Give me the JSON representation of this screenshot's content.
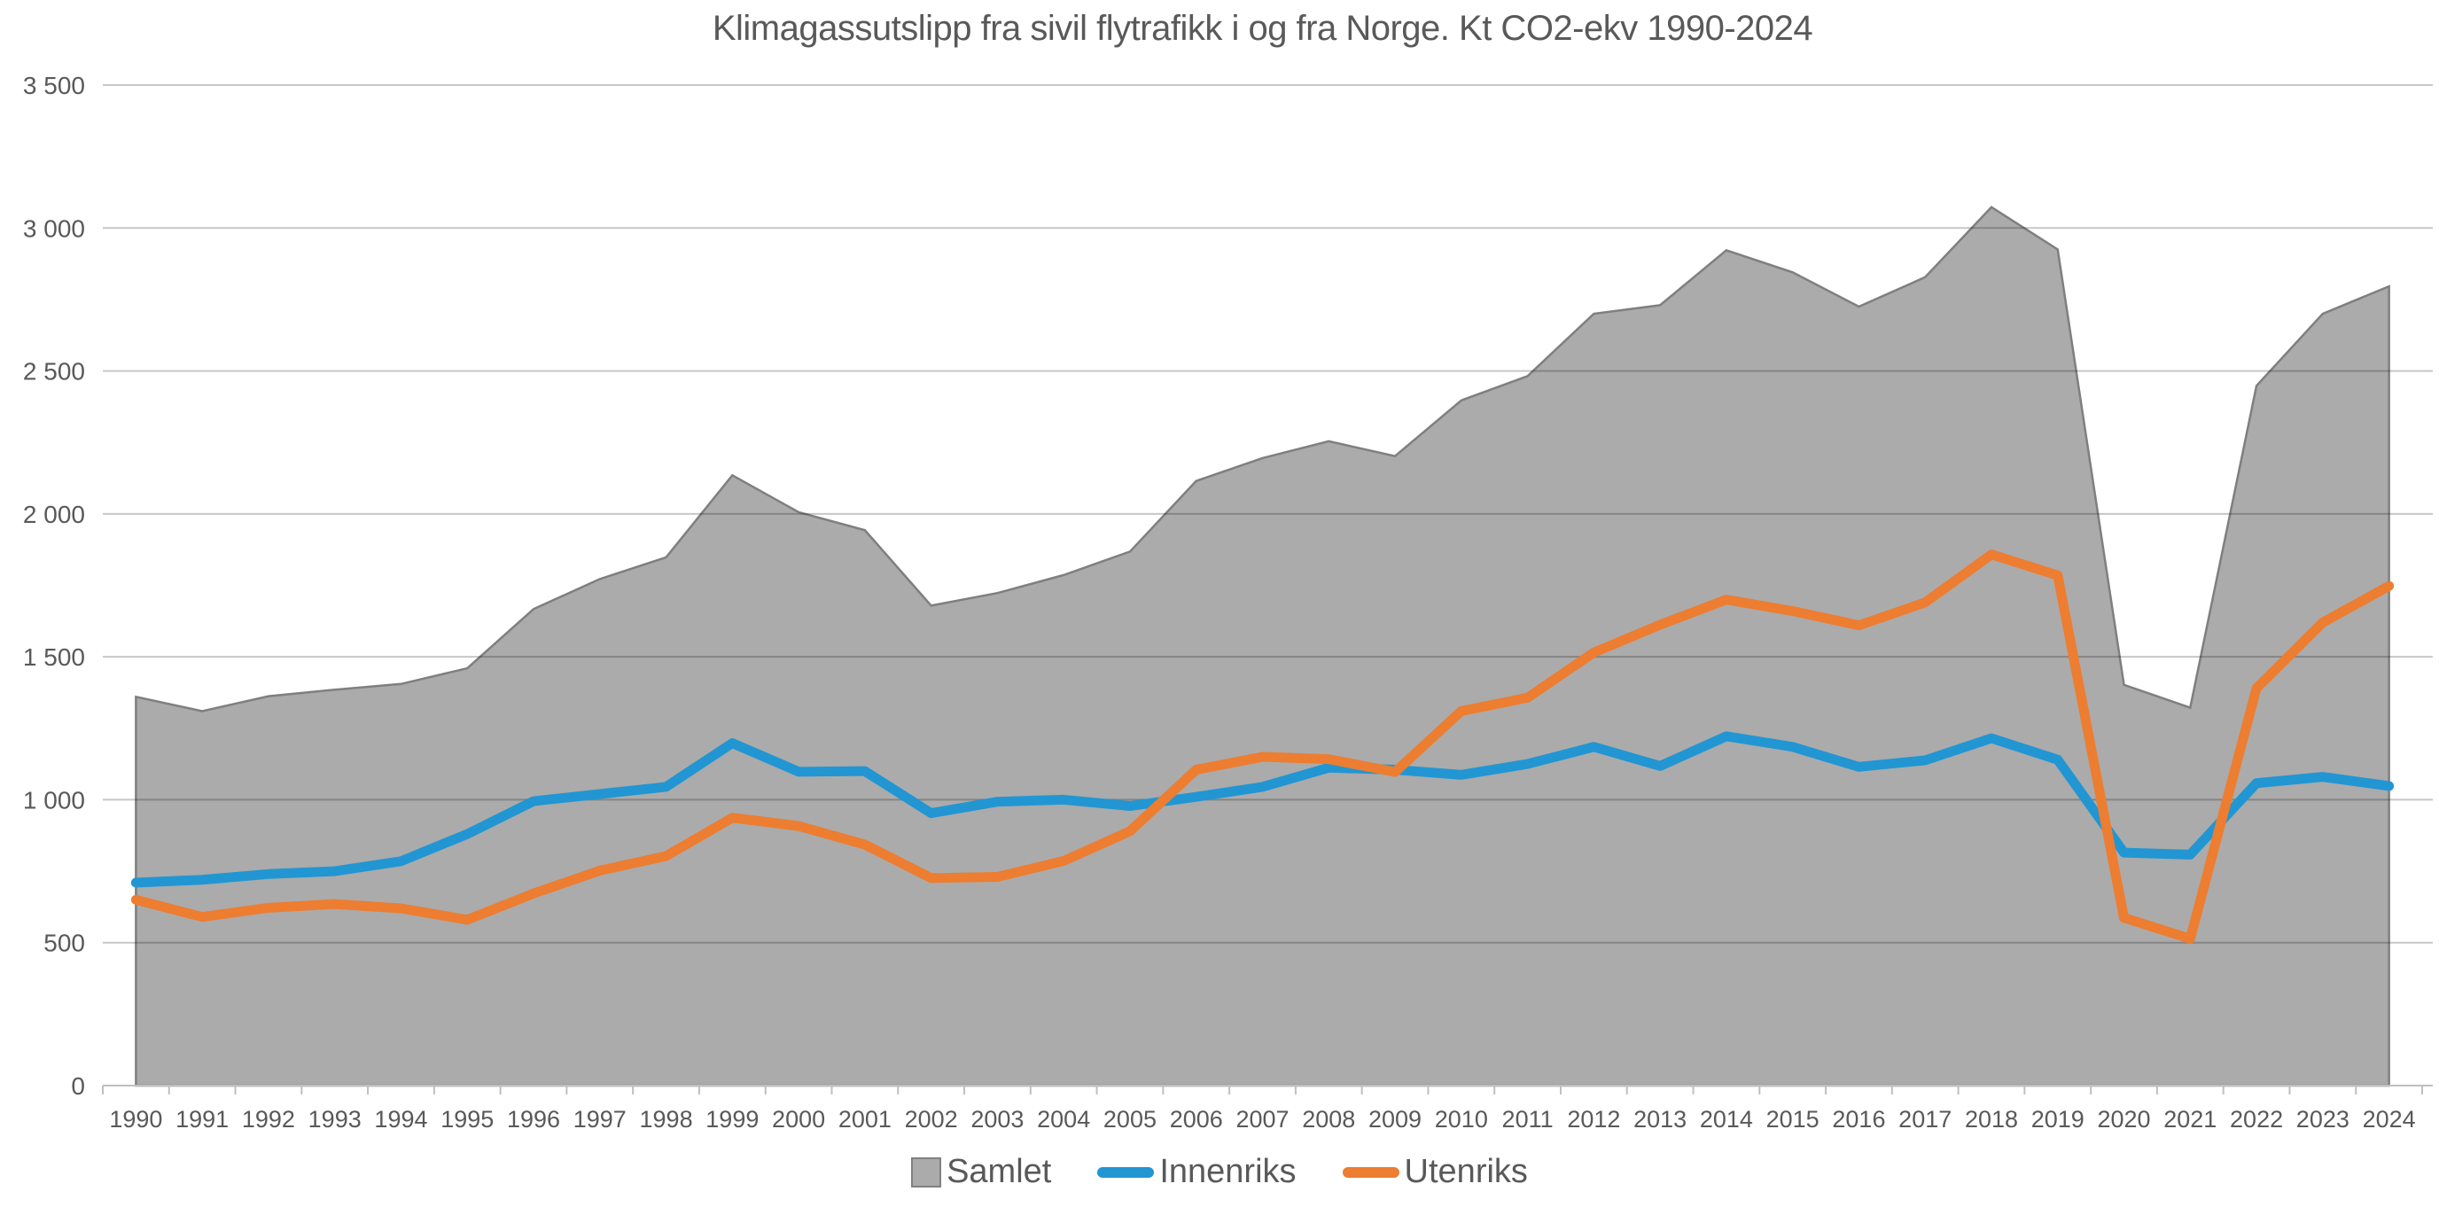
{
  "title": "Klimagassutslipp fra sivil flytrafikk i og fra Norge. Kt CO2-ekv 1990-2024",
  "chart_data": {
    "type": "area",
    "title": "Klimagassutslipp fra sivil flytrafikk i og fra Norge. Kt CO2-ekv 1990-2024",
    "xlabel": "",
    "ylabel": "",
    "ylim": [
      0,
      3500
    ],
    "ytick_step": 500,
    "ytick_labels": [
      "0",
      "500",
      "1 000",
      "1 500",
      "2 000",
      "2 500",
      "3 000",
      "3 500"
    ],
    "grid": true,
    "legend_position": "bottom",
    "categories": [
      "1990",
      "1991",
      "1992",
      "1993",
      "1994",
      "1995",
      "1996",
      "1997",
      "1998",
      "1999",
      "2000",
      "2001",
      "2002",
      "2003",
      "2004",
      "2005",
      "2006",
      "2007",
      "2008",
      "2009",
      "2010",
      "2011",
      "2012",
      "2013",
      "2014",
      "2015",
      "2016",
      "2017",
      "2018",
      "2019",
      "2020",
      "2021",
      "2022",
      "2023",
      "2024"
    ],
    "series": [
      {
        "name": "Samlet",
        "type": "area",
        "color": "#ABABAB",
        "stroke": "#7F7F7F",
        "values": [
          1360,
          1310,
          1362,
          1385,
          1405,
          1460,
          1667,
          1772,
          1848,
          2135,
          2006,
          1943,
          1679,
          1723,
          1786,
          1868,
          2115,
          2195,
          2254,
          2202,
          2397,
          2482,
          2700,
          2730,
          2922,
          2845,
          2725,
          2828,
          3073,
          2925,
          1402,
          1322,
          2448,
          2700,
          2796
        ]
      },
      {
        "name": "Innenriks",
        "type": "line",
        "color": "#2196D3",
        "values": [
          710,
          720,
          740,
          750,
          785,
          880,
          995,
          1020,
          1045,
          1198,
          1098,
          1100,
          953,
          993,
          1000,
          978,
          1010,
          1045,
          1112,
          1105,
          1087,
          1125,
          1185,
          1118,
          1222,
          1185,
          1115,
          1138,
          1215,
          1140,
          815,
          808,
          1058,
          1080,
          1048
        ]
      },
      {
        "name": "Utenriks",
        "type": "line",
        "color": "#ED7D31",
        "values": [
          650,
          590,
          622,
          635,
          620,
          580,
          672,
          752,
          803,
          937,
          908,
          843,
          726,
          730,
          786,
          890,
          1105,
          1150,
          1142,
          1097,
          1310,
          1357,
          1515,
          1612,
          1700,
          1660,
          1610,
          1690,
          1858,
          1785,
          587,
          514,
          1390,
          1620,
          1748
        ]
      }
    ],
    "colors": {
      "axis_text": "#595959",
      "gridline": "rgba(0,0,0,0.22)",
      "axis_line": "#BFBFBF",
      "background": "#FFFFFF"
    }
  }
}
